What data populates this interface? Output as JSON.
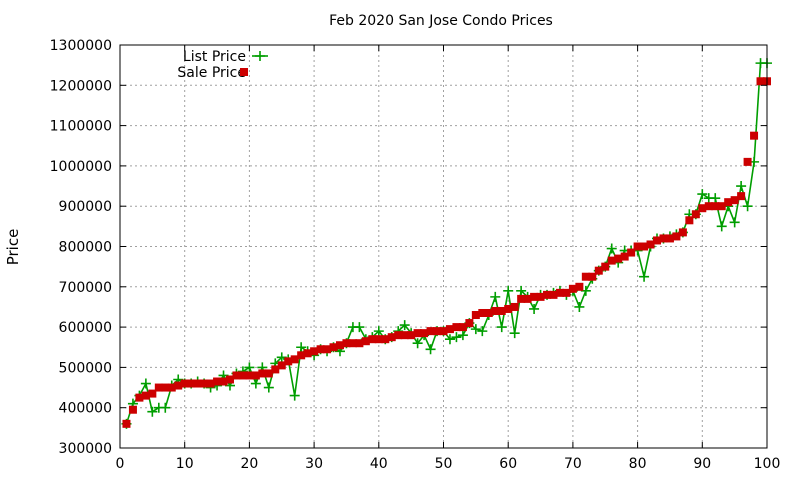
{
  "chart_data": {
    "type": "line",
    "title": "Feb 2020 San Jose Condo Prices",
    "xlabel": "",
    "ylabel": "Price",
    "xlim": [
      0,
      100
    ],
    "ylim": [
      300000,
      1300000
    ],
    "xticks": [
      0,
      10,
      20,
      30,
      40,
      50,
      60,
      70,
      80,
      90,
      100
    ],
    "yticks": [
      300000,
      400000,
      500000,
      600000,
      700000,
      800000,
      900000,
      1000000,
      1100000,
      1200000,
      1300000
    ],
    "grid": true,
    "legend": "top-left",
    "x": [
      1,
      2,
      3,
      4,
      5,
      6,
      7,
      8,
      9,
      10,
      11,
      12,
      13,
      14,
      15,
      16,
      17,
      18,
      19,
      20,
      21,
      22,
      23,
      24,
      25,
      26,
      27,
      28,
      29,
      30,
      31,
      32,
      33,
      34,
      35,
      36,
      37,
      38,
      39,
      40,
      41,
      42,
      43,
      44,
      45,
      46,
      47,
      48,
      49,
      50,
      51,
      52,
      53,
      54,
      55,
      56,
      57,
      58,
      59,
      60,
      61,
      62,
      63,
      64,
      65,
      66,
      67,
      68,
      69,
      70,
      71,
      72,
      73,
      74,
      75,
      76,
      77,
      78,
      79,
      80,
      81,
      82,
      83,
      84,
      85,
      86,
      87,
      88,
      89,
      90,
      91,
      92,
      93,
      94,
      95,
      96,
      97,
      98,
      99,
      100
    ],
    "series": [
      {
        "name": "List Price",
        "style": "linespoints",
        "marker": "plus",
        "color": "#009e00",
        "values": [
          360000,
          410000,
          430000,
          460000,
          390000,
          400000,
          400000,
          455000,
          470000,
          460000,
          460000,
          465000,
          460000,
          450000,
          455000,
          480000,
          455000,
          485000,
          490000,
          500000,
          460000,
          500000,
          450000,
          510000,
          525000,
          520000,
          430000,
          550000,
          540000,
          530000,
          545000,
          540000,
          550000,
          540000,
          560000,
          600000,
          600000,
          570000,
          575000,
          590000,
          570000,
          575000,
          590000,
          605000,
          585000,
          560000,
          580000,
          545000,
          590000,
          590000,
          570000,
          575000,
          580000,
          610000,
          595000,
          590000,
          630000,
          675000,
          600000,
          690000,
          585000,
          690000,
          675000,
          645000,
          680000,
          680000,
          685000,
          690000,
          680000,
          690000,
          650000,
          690000,
          720000,
          740000,
          750000,
          795000,
          760000,
          790000,
          790000,
          790000,
          725000,
          800000,
          820000,
          820000,
          825000,
          830000,
          835000,
          880000,
          880000,
          930000,
          920000,
          920000,
          850000,
          900000,
          860000,
          950000,
          900000,
          1010000,
          1255000,
          1255000
        ]
      },
      {
        "name": "Sale Price",
        "style": "points",
        "marker": "square",
        "color": "#cc0000",
        "values": [
          360000,
          395000,
          425000,
          430000,
          435000,
          450000,
          450000,
          450000,
          455000,
          460000,
          460000,
          460000,
          460000,
          460000,
          465000,
          465000,
          470000,
          480000,
          480000,
          480000,
          480000,
          485000,
          485000,
          495000,
          505000,
          515000,
          520000,
          530000,
          535000,
          540000,
          545000,
          545000,
          550000,
          555000,
          560000,
          560000,
          560000,
          565000,
          570000,
          570000,
          570000,
          575000,
          580000,
          580000,
          580000,
          585000,
          585000,
          590000,
          590000,
          590000,
          595000,
          600000,
          600000,
          610000,
          630000,
          635000,
          635000,
          640000,
          640000,
          645000,
          650000,
          670000,
          670000,
          675000,
          675000,
          680000,
          680000,
          685000,
          685000,
          695000,
          700000,
          725000,
          725000,
          740000,
          750000,
          765000,
          770000,
          775000,
          785000,
          800000,
          800000,
          805000,
          815000,
          820000,
          820000,
          825000,
          835000,
          865000,
          880000,
          895000,
          900000,
          900000,
          900000,
          910000,
          915000,
          925000,
          1010000,
          1075000,
          1210000,
          1210000
        ]
      }
    ]
  }
}
